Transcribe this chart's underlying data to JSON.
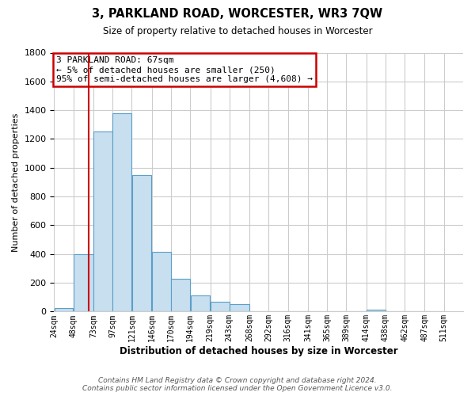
{
  "title": "3, PARKLAND ROAD, WORCESTER, WR3 7QW",
  "subtitle": "Size of property relative to detached houses in Worcester",
  "xlabel": "Distribution of detached houses by size in Worcester",
  "ylabel": "Number of detached properties",
  "bar_left_edges": [
    24,
    48,
    73,
    97,
    121,
    146,
    170,
    194,
    219,
    243,
    268,
    292,
    316,
    341,
    365,
    389,
    414,
    438,
    462,
    487
  ],
  "bar_widths": [
    24,
    25,
    24,
    24,
    25,
    24,
    24,
    25,
    24,
    25,
    24,
    24,
    25,
    24,
    24,
    25,
    24,
    24,
    25,
    24
  ],
  "bar_heights": [
    25,
    400,
    1250,
    1380,
    950,
    415,
    230,
    110,
    70,
    50,
    0,
    0,
    0,
    0,
    0,
    0,
    15,
    0,
    0,
    0
  ],
  "bar_color": "#c8dff0",
  "bar_edge_color": "#5a9fc8",
  "tick_labels": [
    "24sqm",
    "48sqm",
    "73sqm",
    "97sqm",
    "121sqm",
    "146sqm",
    "170sqm",
    "194sqm",
    "219sqm",
    "243sqm",
    "268sqm",
    "292sqm",
    "316sqm",
    "341sqm",
    "365sqm",
    "389sqm",
    "414sqm",
    "438sqm",
    "462sqm",
    "487sqm",
    "511sqm"
  ],
  "tick_positions": [
    24,
    48,
    73,
    97,
    121,
    146,
    170,
    194,
    219,
    243,
    268,
    292,
    316,
    341,
    365,
    389,
    414,
    438,
    462,
    487,
    511
  ],
  "ylim": [
    0,
    1800
  ],
  "xlim": [
    24,
    535
  ],
  "property_line_x": 67,
  "property_line_color": "#cc0000",
  "annotation_title": "3 PARKLAND ROAD: 67sqm",
  "annotation_line1": "← 5% of detached houses are smaller (250)",
  "annotation_line2": "95% of semi-detached houses are larger (4,608) →",
  "footer_line1": "Contains HM Land Registry data © Crown copyright and database right 2024.",
  "footer_line2": "Contains public sector information licensed under the Open Government Licence v3.0.",
  "grid_color": "#cccccc",
  "background_color": "#ffffff"
}
